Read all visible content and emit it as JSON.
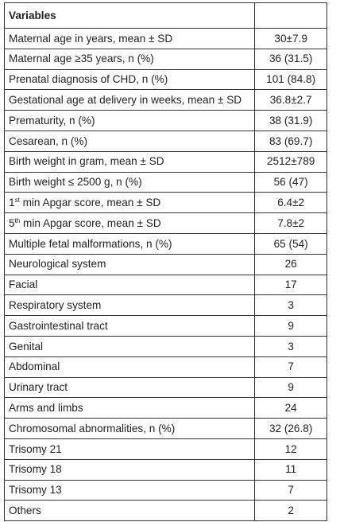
{
  "table": {
    "header": {
      "variable": "Variables",
      "value": ""
    },
    "rows": [
      {
        "label": "Maternal age in years, mean ± SD",
        "value": "30±7.9"
      },
      {
        "label": "Maternal age ≥35 years, n (%)",
        "value": "36 (31.5)"
      },
      {
        "label": "Prenatal diagnosis of CHD, n (%)",
        "value": "101 (84.8)"
      },
      {
        "label": "Gestational age at delivery in weeks, mean ± SD",
        "value": "36.8±2.7"
      },
      {
        "label": "Prematurity, n (%)",
        "value": "38 (31.9)"
      },
      {
        "label": "Cesarean, n (%)",
        "value": "83 (69.7)"
      },
      {
        "label": "Birth weight in gram, mean ± SD",
        "value": "2512±789"
      },
      {
        "label": "Birth weight ≤ 2500 g, n (%)",
        "value": "56 (47)"
      },
      {
        "label_pre": "1",
        "label_sup": "st",
        "label": " min Apgar score, mean ± SD",
        "value": "6.4±2"
      },
      {
        "label_pre": "5",
        "label_sup": "th",
        "label": " min Apgar score, mean ± SD",
        "value": "7.8±2"
      },
      {
        "label": "Multiple fetal malformations, n (%)",
        "value": "65 (54)"
      },
      {
        "label": "Neurological system",
        "value": "26"
      },
      {
        "label": "Facial",
        "value": "17"
      },
      {
        "label": "Respiratory system",
        "value": "3"
      },
      {
        "label": "Gastrointestinal tract",
        "value": "9"
      },
      {
        "label": "Genital",
        "value": "3"
      },
      {
        "label": "Abdominal",
        "value": "7"
      },
      {
        "label": "Urinary tract",
        "value": "9"
      },
      {
        "label": "Arms and limbs",
        "value": "24"
      },
      {
        "label": "Chromosomal abnormalities, n (%)",
        "value": "32 (26.8)"
      },
      {
        "label": "Trisomy 21",
        "value": "12"
      },
      {
        "label": "Trisomy 18",
        "value": "11"
      },
      {
        "label": "Trisomy 13",
        "value": "7"
      },
      {
        "label": "Others",
        "value": "2"
      }
    ]
  }
}
